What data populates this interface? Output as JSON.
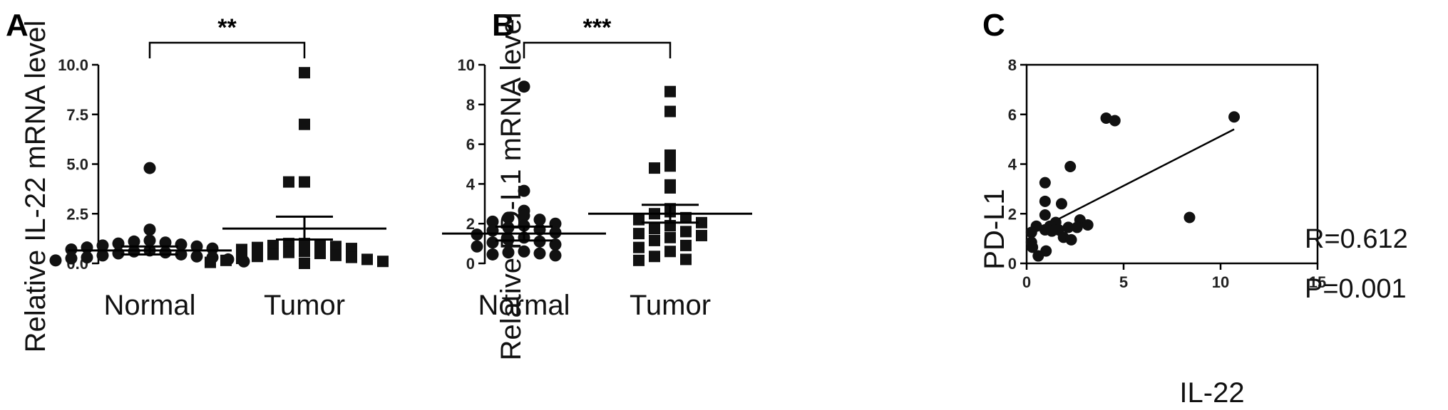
{
  "panels": [
    {
      "letter": "A",
      "ylabel": "Relative IL-22 mRNA level",
      "significance": "**"
    },
    {
      "letter": "B",
      "ylabel": "Relative PD-L1 mRNA level",
      "significance": "***"
    },
    {
      "letter": "C",
      "xlabel": "IL-22",
      "ylabel": "PD-L1",
      "r_label": "R=0.612",
      "p_label": "P=0.001"
    }
  ],
  "chart_data": [
    {
      "type": "scatter",
      "subtype": "dot-plot-mean-sem",
      "ylabel": "Relative IL-22 mRNA level",
      "ylim": [
        0,
        10
      ],
      "yticks": [
        "0.0",
        "2.5",
        "5.0",
        "7.5",
        "10.0"
      ],
      "categories": [
        "Normal",
        "Tumor"
      ],
      "significance": "**",
      "series": [
        {
          "category": "Normal",
          "marker": "circle",
          "mean": 0.65,
          "sem_low": 0.45,
          "sem_high": 0.85,
          "values": [
            4.8,
            1.7,
            1.15,
            1.1,
            1.05,
            1.0,
            0.95,
            0.9,
            0.85,
            0.8,
            0.75,
            0.7,
            0.65,
            0.6,
            0.55,
            0.5,
            0.45,
            0.4,
            0.35,
            0.3,
            0.3,
            0.25,
            0.2,
            0.15,
            0.1
          ]
        },
        {
          "category": "Tumor",
          "marker": "square",
          "mean": 1.75,
          "sem_low": 1.2,
          "sem_high": 2.35,
          "values": [
            9.6,
            7.0,
            4.1,
            4.1,
            1.0,
            1.0,
            0.95,
            0.9,
            0.85,
            0.8,
            0.75,
            0.7,
            0.6,
            0.55,
            0.5,
            0.45,
            0.4,
            0.35,
            0.3,
            0.25,
            0.2,
            0.15,
            0.1,
            0.05,
            0.0
          ]
        }
      ]
    },
    {
      "type": "scatter",
      "subtype": "dot-plot-mean-sem",
      "ylabel": "Relative PD-L1 mRNA level",
      "ylim": [
        0,
        10
      ],
      "yticks": [
        "0",
        "2",
        "4",
        "6",
        "8",
        "10"
      ],
      "categories": [
        "Normal",
        "Tumor"
      ],
      "significance": "***",
      "series": [
        {
          "category": "Normal",
          "marker": "circle",
          "mean": 1.5,
          "sem_low": 1.15,
          "sem_high": 1.85,
          "values": [
            8.9,
            3.65,
            2.65,
            2.4,
            2.3,
            2.2,
            2.1,
            2.0,
            1.9,
            1.8,
            1.7,
            1.65,
            1.55,
            1.45,
            1.3,
            1.2,
            1.1,
            1.05,
            0.95,
            0.85,
            0.6,
            0.55,
            0.5,
            0.45,
            0.4
          ]
        },
        {
          "category": "Tumor",
          "marker": "square",
          "mean": 2.5,
          "sem_low": 2.05,
          "sem_high": 2.95,
          "values": [
            8.65,
            7.65,
            5.45,
            4.9,
            4.8,
            3.95,
            3.8,
            2.75,
            2.6,
            2.5,
            2.3,
            2.2,
            2.05,
            1.9,
            1.75,
            1.6,
            1.5,
            1.4,
            1.3,
            1.15,
            0.9,
            0.8,
            0.6,
            0.35,
            0.2,
            0.15
          ]
        }
      ]
    },
    {
      "type": "scatter",
      "xlabel": "IL-22",
      "ylabel": "PD-L1",
      "xlim": [
        0,
        15
      ],
      "ylim": [
        0,
        8
      ],
      "xticks": [
        "0",
        "5",
        "10",
        "15"
      ],
      "yticks": [
        "0",
        "2",
        "4",
        "6",
        "8"
      ],
      "r_label": "R=0.612",
      "p_label": "P=0.001",
      "regression_line": {
        "x": [
          0.3,
          10.7
        ],
        "y": [
          1.25,
          5.4
        ]
      },
      "points": [
        {
          "x": 4.1,
          "y": 5.85
        },
        {
          "x": 4.55,
          "y": 5.75
        },
        {
          "x": 10.7,
          "y": 5.9
        },
        {
          "x": 2.25,
          "y": 3.9
        },
        {
          "x": 0.95,
          "y": 3.25
        },
        {
          "x": 0.95,
          "y": 2.5
        },
        {
          "x": 1.8,
          "y": 2.4
        },
        {
          "x": 0.95,
          "y": 1.95
        },
        {
          "x": 8.4,
          "y": 1.85
        },
        {
          "x": 2.75,
          "y": 1.75
        },
        {
          "x": 1.5,
          "y": 1.65
        },
        {
          "x": 3.15,
          "y": 1.55
        },
        {
          "x": 0.5,
          "y": 1.5
        },
        {
          "x": 1.2,
          "y": 1.5
        },
        {
          "x": 2.6,
          "y": 1.45
        },
        {
          "x": 2.15,
          "y": 1.45
        },
        {
          "x": 1.65,
          "y": 1.35
        },
        {
          "x": 0.95,
          "y": 1.35
        },
        {
          "x": 1.3,
          "y": 1.3
        },
        {
          "x": 0.25,
          "y": 1.25
        },
        {
          "x": 1.9,
          "y": 1.05
        },
        {
          "x": 2.3,
          "y": 0.95
        },
        {
          "x": 0.25,
          "y": 0.85
        },
        {
          "x": 0.3,
          "y": 0.65
        },
        {
          "x": 1.0,
          "y": 0.5
        },
        {
          "x": 0.6,
          "y": 0.3
        }
      ]
    }
  ]
}
